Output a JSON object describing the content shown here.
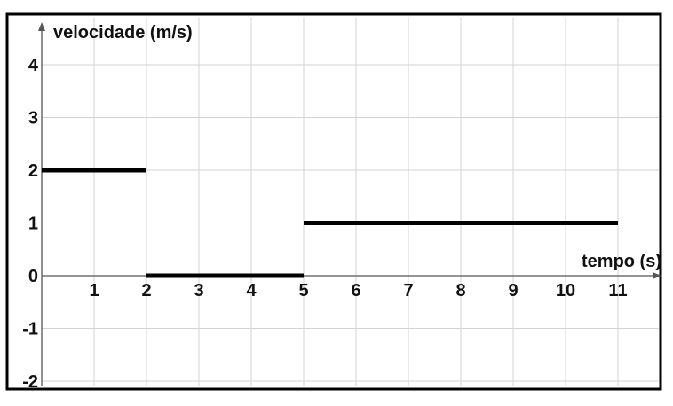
{
  "chart_data": {
    "type": "line",
    "title": "",
    "xlabel": "tempo (s)",
    "ylabel": "velocidade (m/s)",
    "xlim": [
      0,
      11.8
    ],
    "ylim": [
      -2,
      4.9
    ],
    "grid": true,
    "x_ticks": [
      "1",
      "2",
      "3",
      "4",
      "5",
      "6",
      "7",
      "8",
      "9",
      "10",
      "11"
    ],
    "y_ticks": [
      "4",
      "3",
      "2",
      "1",
      "0",
      "-1",
      "-2"
    ],
    "series": [
      {
        "segments": [
          {
            "x": [
              0,
              2
            ],
            "y": [
              2,
              2
            ]
          },
          {
            "x": [
              2,
              5
            ],
            "y": [
              0,
              0
            ]
          },
          {
            "x": [
              5,
              11
            ],
            "y": [
              1,
              1
            ]
          }
        ]
      }
    ]
  }
}
